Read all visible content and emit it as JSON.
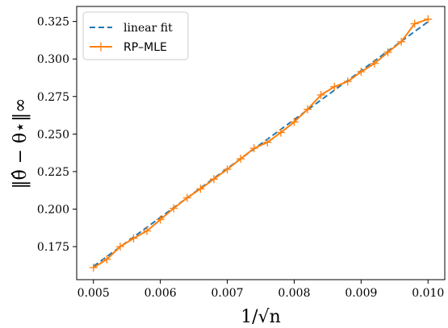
{
  "chart_data": {
    "type": "line",
    "xlabel": "1/√n",
    "ylabel": "‖θ̂ − θ⋆‖∞",
    "xlim": [
      0.00475,
      0.01025
    ],
    "ylim": [
      0.153,
      0.335
    ],
    "x_ticks": [
      0.005,
      0.006,
      0.007,
      0.008,
      0.009,
      0.01
    ],
    "x_tick_labels": [
      "0.005",
      "0.006",
      "0.007",
      "0.008",
      "0.009",
      "0.010"
    ],
    "y_ticks": [
      0.175,
      0.2,
      0.225,
      0.25,
      0.275,
      0.3,
      0.325
    ],
    "y_tick_labels": [
      "0.175",
      "0.200",
      "0.225",
      "0.250",
      "0.275",
      "0.300",
      "0.325"
    ],
    "grid": false,
    "legend_position": "top-left",
    "series": [
      {
        "name": "linear fit",
        "style": "dashed",
        "color": "#1f77b4",
        "x": [
          0.005,
          0.01
        ],
        "y": [
          0.1618,
          0.3248
        ]
      },
      {
        "name": "RP–MLE",
        "style": "solid-plus",
        "color": "#ff7f0e",
        "x": [
          0.005,
          0.0052,
          0.0054,
          0.0056,
          0.0058,
          0.006,
          0.0062,
          0.0064,
          0.0066,
          0.0068,
          0.007,
          0.0072,
          0.0074,
          0.0076,
          0.0078,
          0.008,
          0.0082,
          0.0084,
          0.0086,
          0.0088,
          0.009,
          0.0092,
          0.0094,
          0.0096,
          0.0098,
          0.01
        ],
        "y": [
          0.161,
          0.1665,
          0.175,
          0.1805,
          0.1855,
          0.193,
          0.2005,
          0.2075,
          0.2135,
          0.22,
          0.2265,
          0.2335,
          0.2405,
          0.2445,
          0.251,
          0.258,
          0.2665,
          0.276,
          0.2815,
          0.285,
          0.2915,
          0.297,
          0.3045,
          0.3115,
          0.3235,
          0.3265
        ]
      }
    ]
  }
}
